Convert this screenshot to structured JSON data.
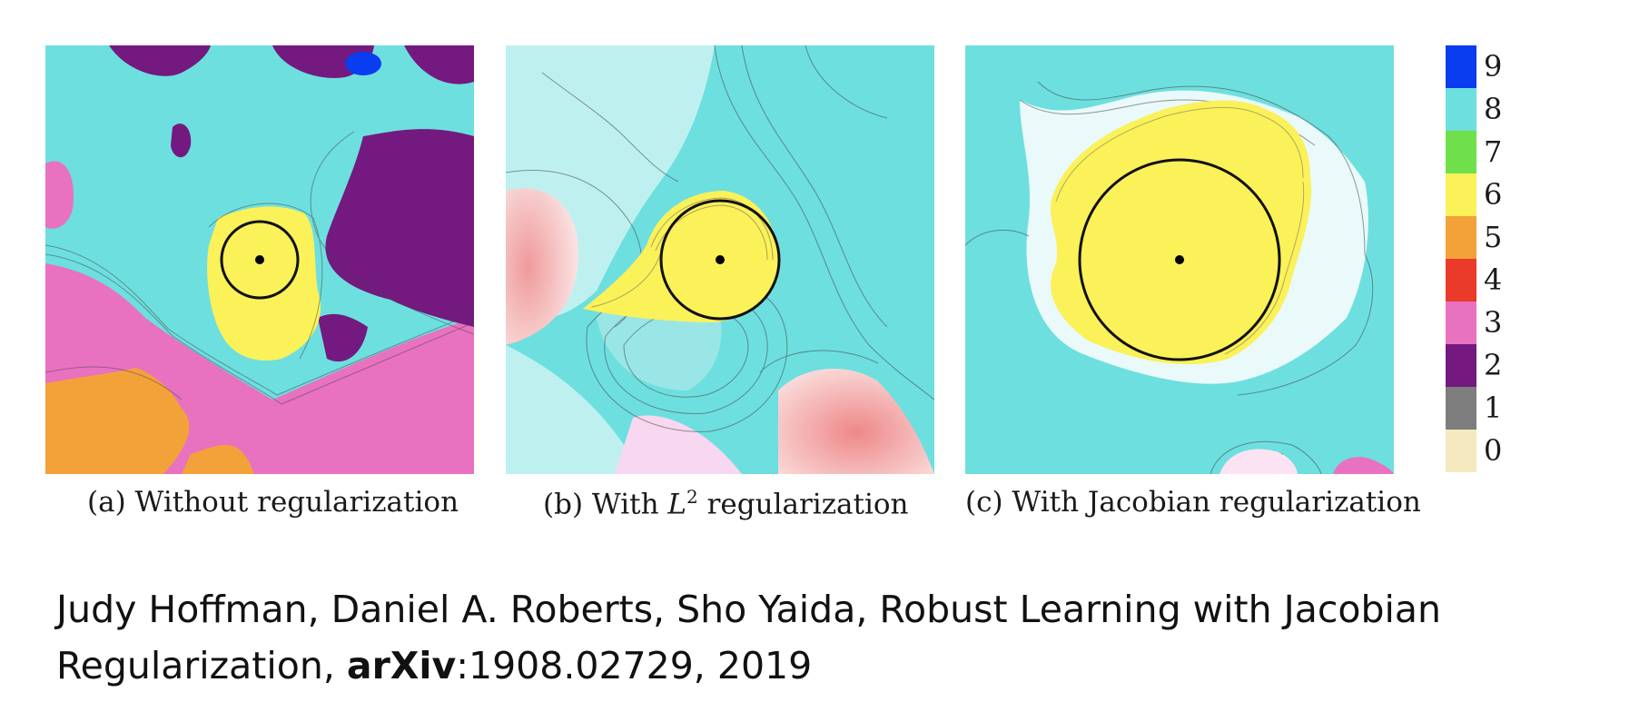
{
  "panels": [
    {
      "caption_prefix": "(a) Without regularization",
      "caption_math": "",
      "caption_sup": "",
      "caption_suffix": ""
    },
    {
      "caption_prefix": "(b) With ",
      "caption_math": "L",
      "caption_sup": "2",
      "caption_suffix": " regularization"
    },
    {
      "caption_prefix": "(c) With Jacobian regularization",
      "caption_math": "",
      "caption_sup": "",
      "caption_suffix": ""
    }
  ],
  "colorbar": {
    "labels": [
      "9",
      "8",
      "7",
      "6",
      "5",
      "4",
      "3",
      "2",
      "1",
      "0"
    ],
    "colors": [
      "#0a3cf0",
      "#6ddfdf",
      "#6fe04c",
      "#fbf159",
      "#f3a23a",
      "#e93a2a",
      "#e872c0",
      "#74197f",
      "#7d7d7d",
      "#f5e9bf"
    ]
  },
  "citation": {
    "text": "Judy Hoffman, Daniel A. Roberts, Sho Yaida, Robust Learning with Jacobian Regularization, ",
    "bold": "arXiv",
    "suffix": ":1908.02729, 2019"
  }
}
